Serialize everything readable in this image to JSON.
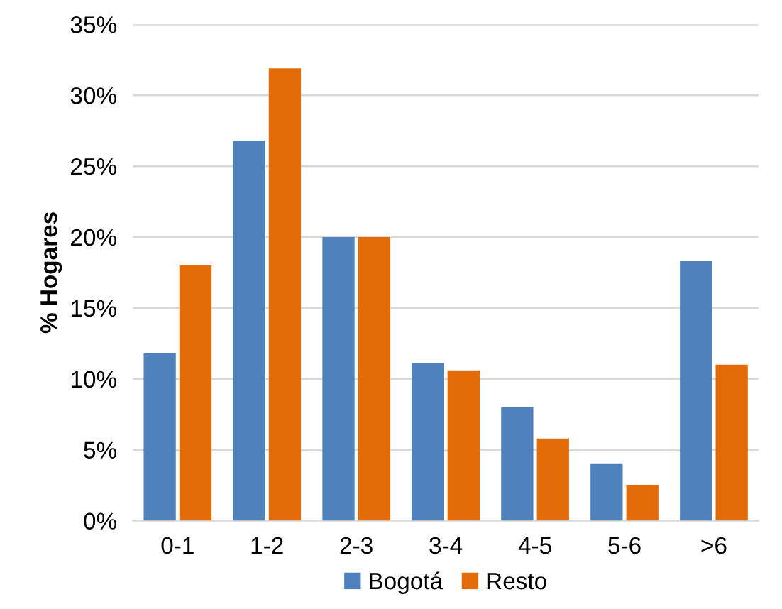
{
  "chart_data": {
    "type": "bar",
    "ylabel": "% Hogares",
    "categories": [
      "0-1",
      "1-2",
      "2-3",
      "3-4",
      "4-5",
      "5-6",
      ">6"
    ],
    "series": [
      {
        "name": "Bogotá",
        "color": "#4f81bd",
        "values": [
          11.8,
          26.8,
          20.0,
          11.1,
          8.0,
          4.0,
          18.3
        ]
      },
      {
        "name": "Resto",
        "color": "#e36c09",
        "values": [
          18.0,
          31.9,
          20.0,
          10.6,
          5.8,
          2.5,
          11.0
        ]
      }
    ],
    "ylim": [
      0,
      35
    ],
    "yticks": [
      {
        "value": 0,
        "label": "0%"
      },
      {
        "value": 5,
        "label": "5%"
      },
      {
        "value": 10,
        "label": "10%"
      },
      {
        "value": 15,
        "label": "15%"
      },
      {
        "value": 20,
        "label": "20%"
      },
      {
        "value": 25,
        "label": "25%"
      },
      {
        "value": 30,
        "label": "30%"
      },
      {
        "value": 35,
        "label": "35%"
      }
    ],
    "grid": "y",
    "legend": "bottom"
  }
}
